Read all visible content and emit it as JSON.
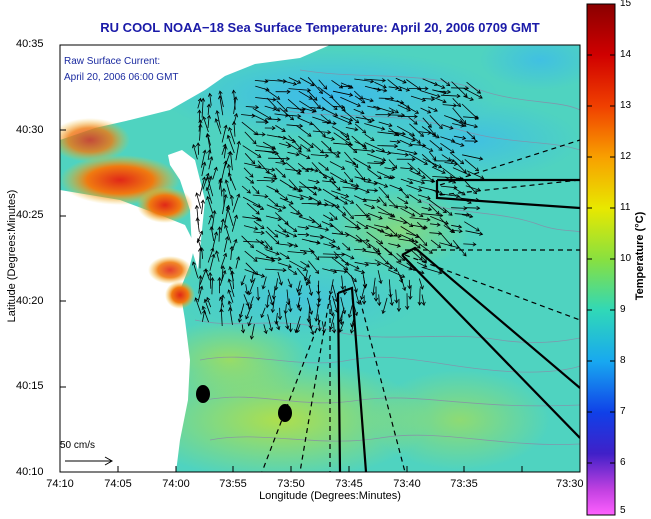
{
  "title": "RU COOL  NOAA−18  Sea Surface Temperature:  April 20, 2006 0709 GMT",
  "current_label_line1": "Raw Surface Current:",
  "current_label_line2": "April 20, 2006 06:00 GMT",
  "scale_label": "50 cm/s",
  "x_axis_label": "Longitude (Degrees:Minutes)",
  "y_axis_label": "Latitude (Degrees:Minutes)",
  "colorbar_label": "Temperature (°C)",
  "x_ticks": [
    "74:10",
    "74:05",
    "74:00",
    "73:55",
    "73:50",
    "73:45",
    "73:40",
    "73:35",
    "73:30"
  ],
  "y_ticks": [
    "40:35",
    "40:30",
    "40:25",
    "40:20",
    "40:15",
    "40:10"
  ],
  "colorbar_ticks": [
    "15",
    "14",
    "13",
    "12",
    "11",
    "10",
    "9",
    "8",
    "7",
    "6",
    "5"
  ],
  "colors": {
    "title": "#1a1aa8",
    "annotation": "#1a2aa0",
    "land": "#ffffff",
    "ocean_base": "#4fd3c0"
  }
}
